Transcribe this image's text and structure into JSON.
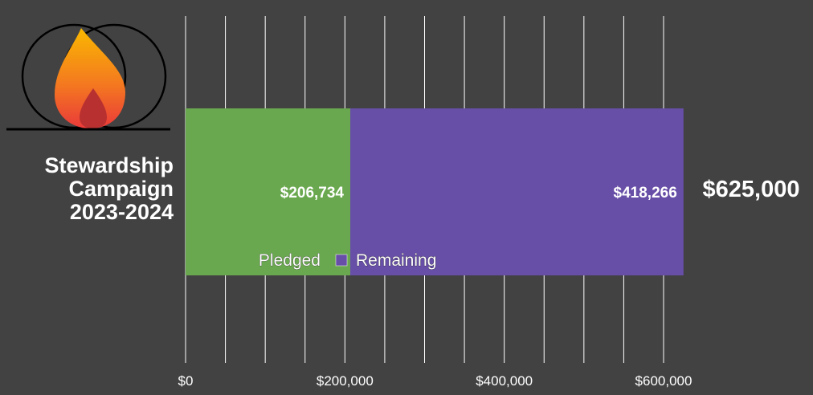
{
  "campaign": {
    "title_lines": [
      "Stewardship",
      "Campaign",
      "2023-2024"
    ],
    "goal_label": "$625,000"
  },
  "logo": {
    "icon": "flame-icon"
  },
  "colors": {
    "background": "#424242",
    "pledged": "#6aa84f",
    "remaining": "#674ea7",
    "text": "#ffffff",
    "grid": "#ffffff"
  },
  "chart_data": {
    "type": "bar",
    "orientation": "horizontal",
    "stacked": true,
    "categories": [
      ""
    ],
    "series": [
      {
        "name": "Pledged",
        "values": [
          206734
        ],
        "label": "$206,734",
        "color": "#6aa84f"
      },
      {
        "name": "Remaining",
        "values": [
          418266
        ],
        "label": "$418,266",
        "color": "#674ea7"
      }
    ],
    "xlim": [
      0,
      600000
    ],
    "x_ticks": [
      0,
      200000,
      400000,
      600000
    ],
    "x_tick_labels": [
      "$0",
      "$200,000",
      "$400,000",
      "$600,000"
    ],
    "grid": true,
    "legend_position": "inside-bottom"
  }
}
